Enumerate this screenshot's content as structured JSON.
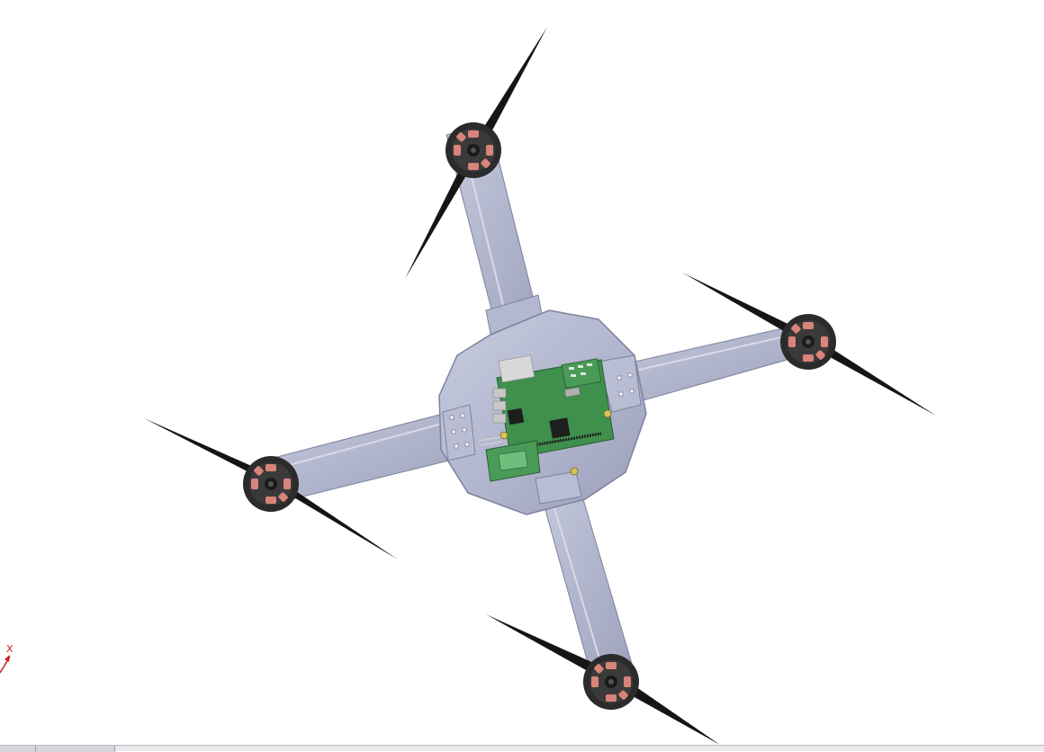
{
  "scene": {
    "model": "quadcopter-assembly",
    "colors": {
      "background": "#ffffff",
      "frame": "#a6aac4",
      "frame_light": "#c4c8dc",
      "frame_dark": "#8a8eaa",
      "motor_body": "#2b2b2b",
      "motor_accent": "#d9847a",
      "propeller": "#151515",
      "pcb": "#3f8f4d",
      "pcb_dark": "#2f6e3b",
      "axis": "#cc2222"
    }
  },
  "triad": {
    "x_label": "X"
  },
  "tabs": {
    "items": [
      {
        "label": ""
      },
      {
        "label": ""
      }
    ]
  }
}
